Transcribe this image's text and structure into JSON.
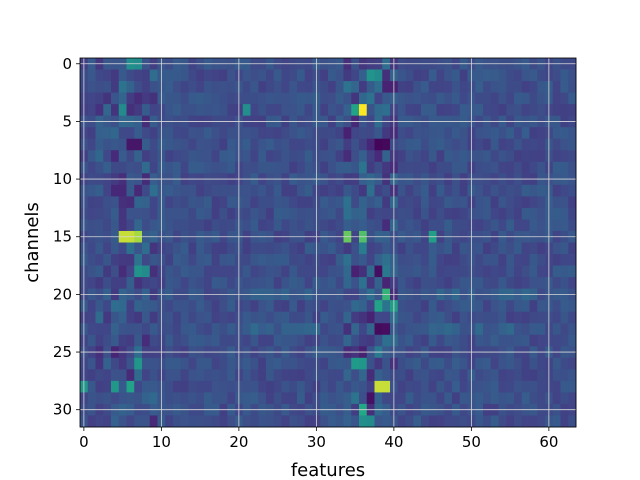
{
  "chart_data": {
    "type": "heatmap",
    "title": "",
    "xlabel": "features",
    "ylabel": "channels",
    "n_cols": 64,
    "n_rows": 32,
    "xlim": [
      -0.5,
      63.5
    ],
    "ylim": [
      31.5,
      -0.5
    ],
    "x_ticks": [
      0,
      10,
      20,
      30,
      40,
      50,
      60
    ],
    "y_ticks": [
      0,
      5,
      10,
      15,
      20,
      25,
      30
    ],
    "grid": true,
    "colormap": "viridis",
    "colors": {
      "background": "#3b518b",
      "grid": "#d9d9d9",
      "axis": "#000000"
    },
    "seed": 7,
    "hotspots": [
      {
        "x": 36,
        "y": 4,
        "v": 1.0
      },
      {
        "x": 35,
        "y": 4,
        "v": 0.72
      },
      {
        "x": 37,
        "y": 1,
        "v": 0.65
      },
      {
        "x": 38,
        "y": 1,
        "v": 0.6
      },
      {
        "x": 5,
        "y": 15,
        "v": 0.95
      },
      {
        "x": 6,
        "y": 15,
        "v": 0.95
      },
      {
        "x": 7,
        "y": 15,
        "v": 0.92
      },
      {
        "x": 34,
        "y": 15,
        "v": 0.85
      },
      {
        "x": 36,
        "y": 15,
        "v": 0.82
      },
      {
        "x": 45,
        "y": 15,
        "v": 0.7
      },
      {
        "x": 38,
        "y": 28,
        "v": 0.95
      },
      {
        "x": 39,
        "y": 28,
        "v": 0.95
      },
      {
        "x": 39,
        "y": 20,
        "v": 0.78
      },
      {
        "x": 38,
        "y": 21,
        "v": 0.72
      },
      {
        "x": 40,
        "y": 21,
        "v": 0.7
      },
      {
        "x": 36,
        "y": 30,
        "v": 0.75
      },
      {
        "x": 35,
        "y": 26,
        "v": 0.68
      },
      {
        "x": 36,
        "y": 26,
        "v": 0.66
      },
      {
        "x": 6,
        "y": 0,
        "v": 0.62
      },
      {
        "x": 7,
        "y": 0,
        "v": 0.6
      },
      {
        "x": 6,
        "y": 28,
        "v": 0.72
      },
      {
        "x": 4,
        "y": 28,
        "v": 0.66
      },
      {
        "x": 7,
        "y": 26,
        "v": 0.66
      },
      {
        "x": 5,
        "y": 4,
        "v": 0.6
      },
      {
        "x": 7,
        "y": 18,
        "v": 0.64
      },
      {
        "x": 8,
        "y": 18,
        "v": 0.6
      },
      {
        "x": 0,
        "y": 28,
        "v": 0.66
      },
      {
        "x": 21,
        "y": 4,
        "v": 0.62
      },
      {
        "x": 36,
        "y": 31,
        "v": 0.62
      },
      {
        "x": 37,
        "y": 31,
        "v": 0.6
      }
    ],
    "coldspots": [
      {
        "x": 38,
        "y": 7,
        "v": 0.02
      },
      {
        "x": 39,
        "y": 7,
        "v": 0.03
      },
      {
        "x": 38,
        "y": 18,
        "v": 0.05
      },
      {
        "x": 38,
        "y": 23,
        "v": 0.04
      },
      {
        "x": 39,
        "y": 23,
        "v": 0.05
      },
      {
        "x": 6,
        "y": 7,
        "v": 0.08
      },
      {
        "x": 7,
        "y": 7,
        "v": 0.08
      },
      {
        "x": 37,
        "y": 29,
        "v": 0.06
      }
    ]
  }
}
